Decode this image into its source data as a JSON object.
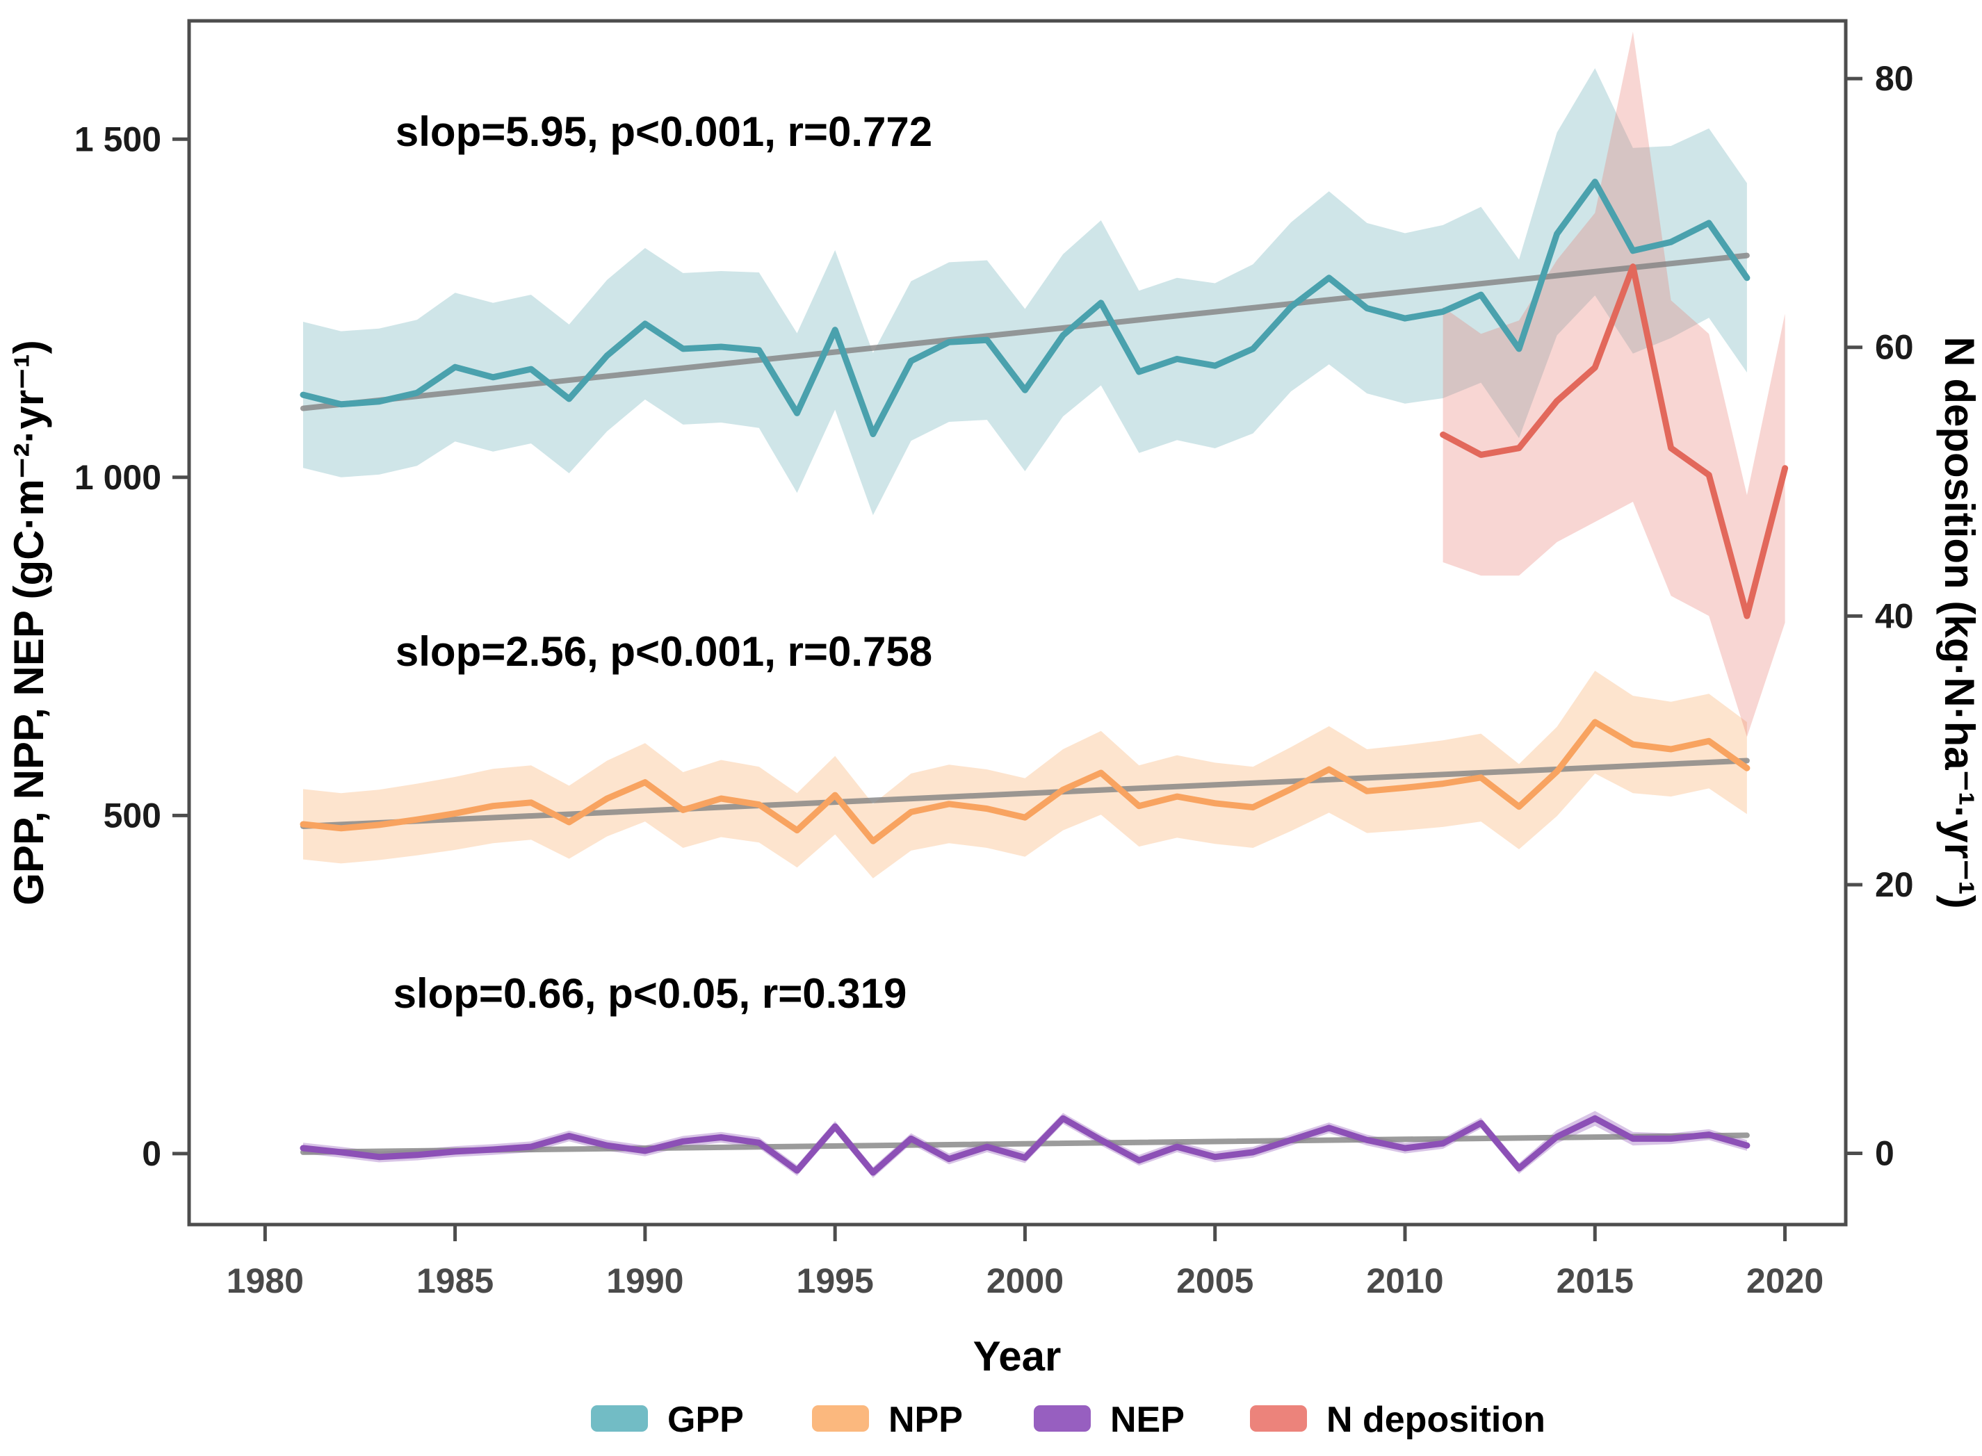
{
  "chart_data": {
    "type": "line",
    "title": "",
    "xlabel": "Year",
    "ylabel_left": "GPP, NPP, NEP (gC·m⁻²·yr⁻¹)",
    "ylabel_right": "N deposition (kg·N·ha⁻¹·yr⁻¹)",
    "grid": false,
    "legend_position": "bottom",
    "xlim": [
      1978.0,
      2021.6
    ],
    "ylim_left": [
      -105,
      1675
    ],
    "ylim_right": [
      -5.3,
      84.3
    ],
    "x_ticks": [
      {
        "value": 1980,
        "label": "1980"
      },
      {
        "value": 1985,
        "label": "1985"
      },
      {
        "value": 1990,
        "label": "1990"
      },
      {
        "value": 1995,
        "label": "1995"
      },
      {
        "value": 2000,
        "label": "2000"
      },
      {
        "value": 2005,
        "label": "2005"
      },
      {
        "value": 2010,
        "label": "2010"
      },
      {
        "value": 2015,
        "label": "2015"
      },
      {
        "value": 2020,
        "label": "2020"
      }
    ],
    "y_ticks_left": [
      {
        "value": 0,
        "label": "0"
      },
      {
        "value": 500,
        "label": "500"
      },
      {
        "value": 1000,
        "label": "1 000"
      },
      {
        "value": 1500,
        "label": "1 500"
      }
    ],
    "y_ticks_right": [
      {
        "value": 0,
        "label": "0"
      },
      {
        "value": 20,
        "label": "20"
      },
      {
        "value": 40,
        "label": "40"
      },
      {
        "value": 60,
        "label": "60"
      },
      {
        "value": 80,
        "label": "80"
      }
    ],
    "years": [
      1981,
      1982,
      1983,
      1984,
      1985,
      1986,
      1987,
      1988,
      1989,
      1990,
      1991,
      1992,
      1993,
      1994,
      1995,
      1996,
      1997,
      1998,
      1999,
      2000,
      2001,
      2002,
      2003,
      2004,
      2005,
      2006,
      2007,
      2008,
      2009,
      2010,
      2011,
      2012,
      2013,
      2014,
      2015,
      2016,
      2017,
      2018,
      2019
    ],
    "series": [
      {
        "name": "GPP",
        "axis": "left",
        "color": "#4AA1AD",
        "ribbon_color": "rgba(105,175,185,0.32)",
        "legend_color": "#72BCC5",
        "values": [
          1122,
          1108,
          1112,
          1125,
          1163,
          1148,
          1160,
          1116,
          1180,
          1227,
          1190,
          1193,
          1188,
          1095,
          1218,
          1064,
          1172,
          1200,
          1203,
          1129,
          1210,
          1258,
          1156,
          1175,
          1165,
          1190,
          1252,
          1295,
          1250,
          1235,
          1245,
          1270,
          1190,
          1360,
          1437,
          1335,
          1348,
          1376,
          1295
        ],
        "band": [
          108,
          108,
          108,
          108,
          110,
          110,
          110,
          110,
          112,
          112,
          112,
          112,
          115,
          118,
          118,
          120,
          118,
          118,
          118,
          120,
          120,
          122,
          120,
          120,
          122,
          125,
          125,
          128,
          126,
          126,
          128,
          130,
          132,
          150,
          168,
          152,
          142,
          140,
          140
        ]
      },
      {
        "name": "NPP",
        "axis": "left",
        "color": "#F8A360",
        "ribbon_color": "rgba(250,164,92,0.30)",
        "legend_color": "#FBB87E",
        "values": [
          487,
          481,
          486,
          494,
          503,
          514,
          519,
          490,
          525,
          549,
          508,
          525,
          516,
          478,
          530,
          462,
          505,
          517,
          510,
          497,
          538,
          563,
          514,
          528,
          518,
          512,
          539,
          568,
          536,
          541,
          547,
          556,
          513,
          565,
          638,
          605,
          598,
          610,
          570
        ],
        "band": [
          52,
          52,
          52,
          53,
          54,
          55,
          55,
          54,
          56,
          58,
          56,
          57,
          56,
          55,
          58,
          55,
          57,
          58,
          58,
          58,
          60,
          62,
          60,
          61,
          60,
          60,
          62,
          64,
          62,
          63,
          64,
          65,
          63,
          66,
          76,
          72,
          70,
          70,
          68
        ]
      },
      {
        "name": "NEP",
        "axis": "left",
        "color": "#8C50B6",
        "ribbon_color": "rgba(142,85,184,0.35)",
        "legend_color": "#975FC0",
        "values": [
          8,
          2,
          -5,
          -2,
          3,
          6,
          10,
          26,
          12,
          4,
          18,
          24,
          16,
          -25,
          40,
          -28,
          22,
          -8,
          10,
          -6,
          52,
          20,
          -10,
          10,
          -5,
          2,
          20,
          38,
          20,
          8,
          15,
          45,
          -22,
          25,
          52,
          22,
          22,
          28,
          12
        ],
        "band": [
          8,
          8,
          8,
          8,
          8,
          8,
          8,
          8,
          8,
          8,
          8,
          8,
          8,
          8,
          8,
          8,
          8,
          8,
          8,
          8,
          8,
          8,
          8,
          8,
          8,
          8,
          8,
          8,
          8,
          8,
          8,
          8,
          8,
          10,
          11,
          10,
          8,
          8,
          8
        ]
      },
      {
        "name": "N deposition",
        "axis": "right",
        "color": "#E2685B",
        "ribbon_color": "rgba(233,120,109,0.30)",
        "legend_color": "#EC837B",
        "x": [
          2011,
          2012,
          2013,
          2014,
          2015,
          2016,
          2017,
          2018,
          2019,
          2020
        ],
        "values": [
          53.5,
          52,
          52.5,
          56,
          58.5,
          66,
          52.5,
          50.5,
          40,
          51
        ],
        "band": [
          9.5,
          9,
          9.5,
          10.5,
          11.5,
          17.5,
          11,
          10.5,
          9,
          11.5
        ]
      }
    ],
    "trend_lines": [
      {
        "series": "GPP",
        "x1": 1981,
        "v1": 1102,
        "x2": 2019,
        "v2": 1328,
        "slope": 5.95
      },
      {
        "series": "NPP",
        "x1": 1981,
        "v1": 484,
        "x2": 2019,
        "v2": 581,
        "slope": 2.56
      },
      {
        "series": "NEP",
        "x1": 1981,
        "v1": 2,
        "x2": 2019,
        "v2": 27,
        "slope": 0.66
      }
    ],
    "trend_color": "rgba(130,130,130,0.8)",
    "annotations": [
      {
        "text": "slop=5.95, p<0.001, r=0.772"
      },
      {
        "text": "slop=2.56, p<0.001, r=0.758"
      },
      {
        "text": "slop=0.66, p<0.05, r=0.319"
      }
    ],
    "legend": {
      "items": [
        {
          "label": "GPP"
        },
        {
          "label": "NPP"
        },
        {
          "label": "NEP"
        },
        {
          "label": "N deposition"
        }
      ]
    }
  }
}
